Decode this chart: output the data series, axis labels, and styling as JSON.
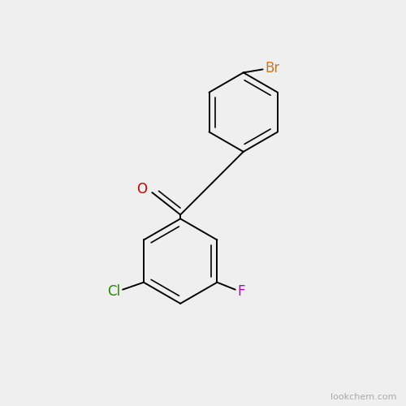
{
  "background_color": "#efefef",
  "line_color": "#000000",
  "bond_width": 1.4,
  "Br_label": "Br",
  "Br_color": "#cc7722",
  "Br_fontsize": 12,
  "O_label": "O",
  "O_color": "#cc0000",
  "O_fontsize": 12,
  "Cl_label": "Cl",
  "Cl_color": "#228800",
  "Cl_fontsize": 12,
  "F_label": "F",
  "F_color": "#bb00bb",
  "F_fontsize": 12,
  "watermark": "lookchem.com",
  "watermark_color": "#aaaaaa",
  "watermark_fontsize": 8
}
